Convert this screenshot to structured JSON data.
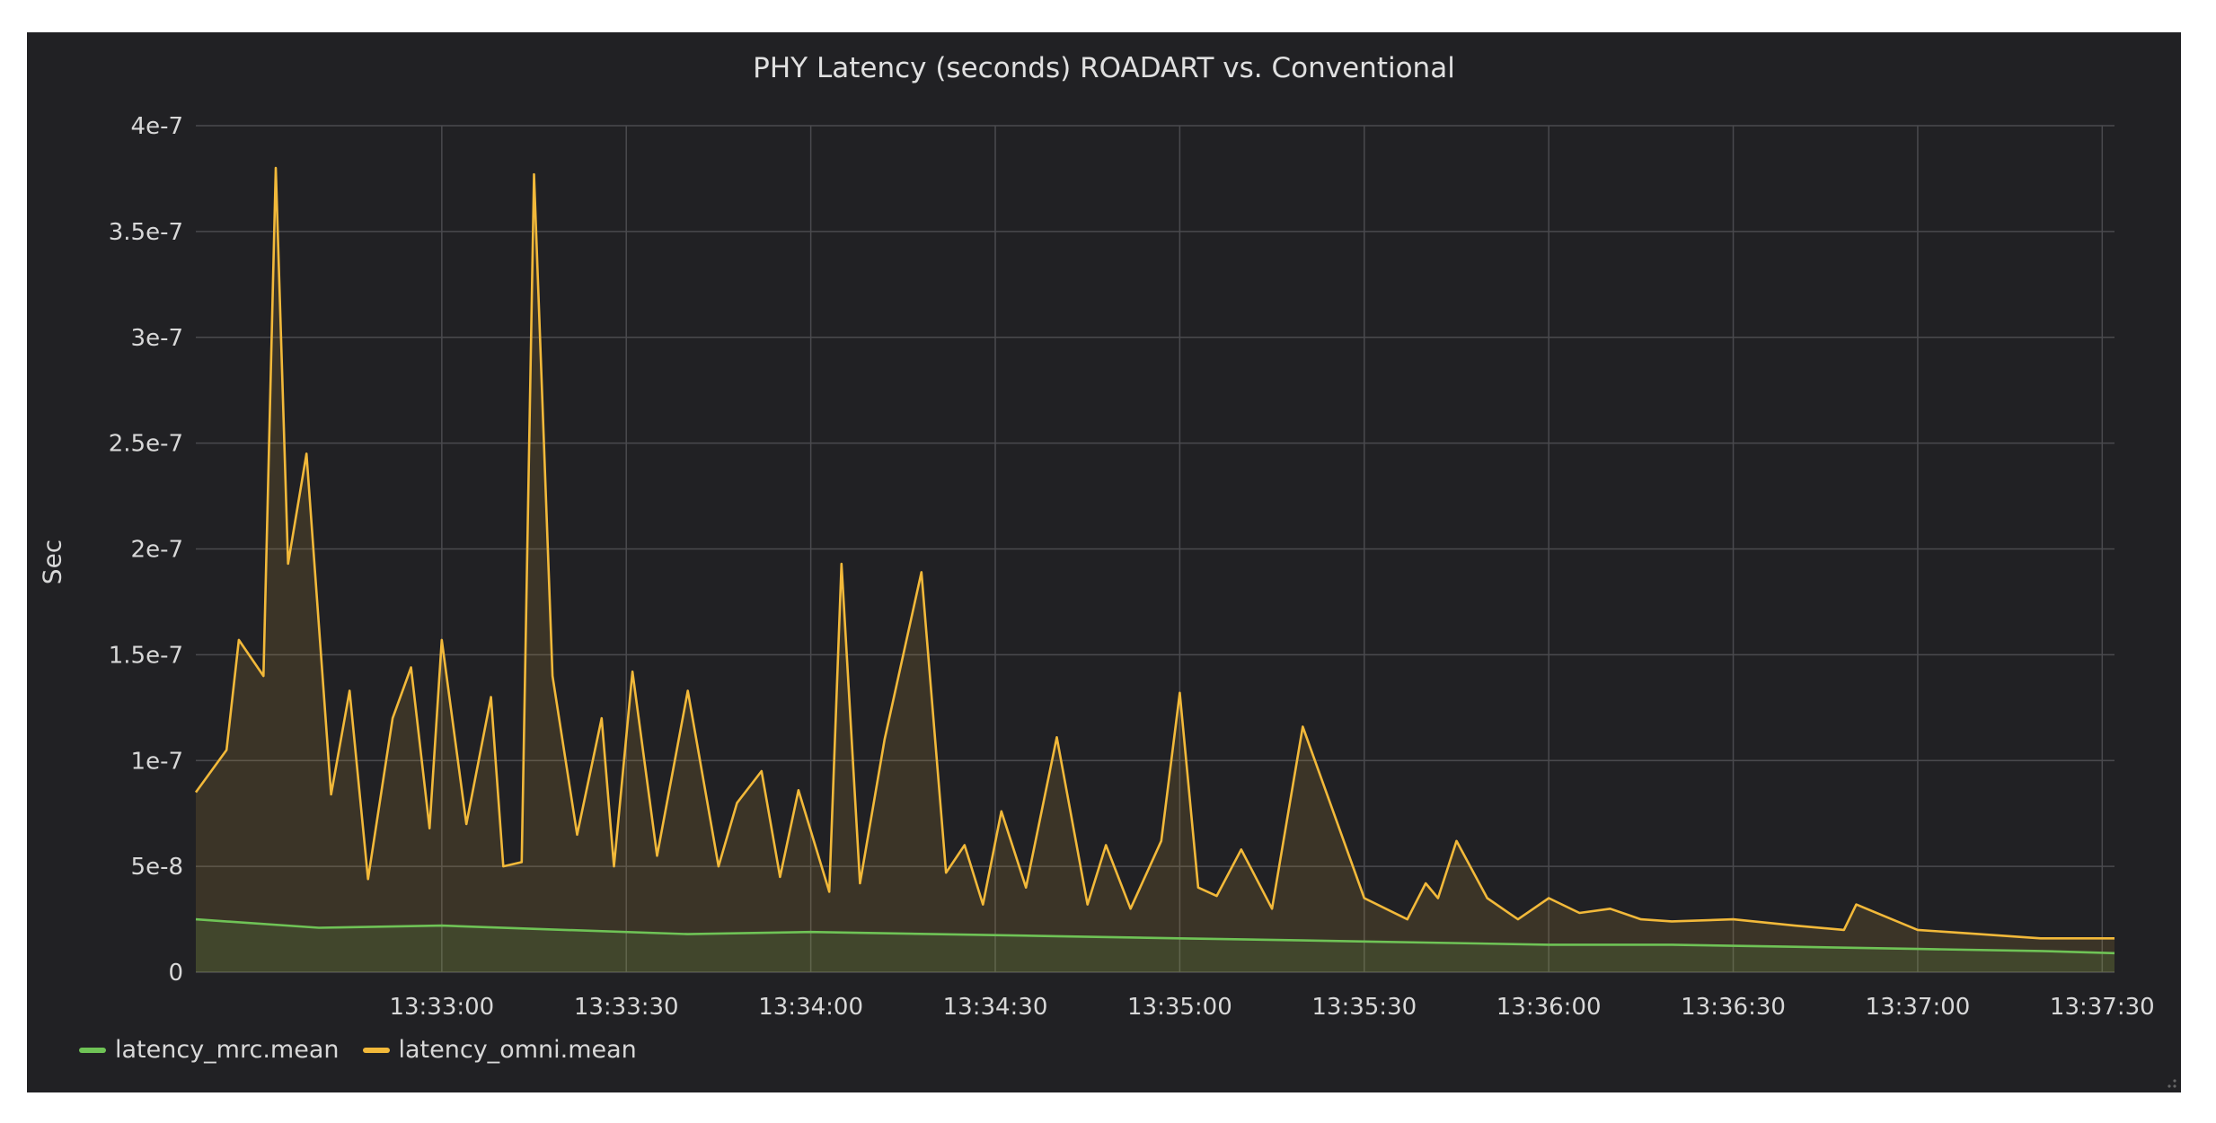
{
  "colors": {
    "panel_bg": "#212124",
    "grid": "#4a4a4e",
    "text": "#d8d8d8",
    "mrc": "#6fc356",
    "omni": "#f2b93a"
  },
  "chart_data": {
    "type": "line",
    "title": "PHY Latency (seconds) ROADART vs. Conventional",
    "ylabel": "Sec",
    "xlabel": "",
    "ylim": [
      0,
      4e-07
    ],
    "y_ticks": [
      0,
      5e-08,
      1e-07,
      1.5e-07,
      2e-07,
      2.5e-07,
      3e-07,
      3.5e-07,
      4e-07
    ],
    "y_tick_labels": [
      "0",
      "5e-8",
      "1e-7",
      "1.5e-7",
      "2e-7",
      "2.5e-7",
      "3e-7",
      "3.5e-7",
      "4e-7"
    ],
    "x_range": [
      "13:32:20",
      "13:37:32"
    ],
    "x_tick_labels": [
      "13:33:00",
      "13:33:30",
      "13:34:00",
      "13:34:30",
      "13:35:00",
      "13:35:30",
      "13:36:00",
      "13:36:30",
      "13:37:00",
      "13:37:30"
    ],
    "grid": true,
    "legend_position": "bottom-left",
    "series": [
      {
        "name": "latency_mrc.mean",
        "color": "#6fc356",
        "fill": true,
        "x": [
          "13:32:20",
          "13:32:40",
          "13:33:00",
          "13:33:20",
          "13:33:40",
          "13:34:00",
          "13:34:20",
          "13:34:40",
          "13:35:00",
          "13:35:20",
          "13:35:40",
          "13:36:00",
          "13:36:20",
          "13:36:40",
          "13:37:00",
          "13:37:20",
          "13:37:32"
        ],
        "y": [
          2.5e-08,
          2.1e-08,
          2.2e-08,
          2e-08,
          1.8e-08,
          1.9e-08,
          1.8e-08,
          1.7e-08,
          1.6e-08,
          1.5e-08,
          1.4e-08,
          1.3e-08,
          1.3e-08,
          1.2e-08,
          1.1e-08,
          1e-08,
          9e-09
        ]
      },
      {
        "name": "latency_omni.mean",
        "color": "#f2b93a",
        "fill": true,
        "x": [
          "13:32:20",
          "13:32:25",
          "13:32:27",
          "13:32:31",
          "13:32:33",
          "13:32:35",
          "13:32:38",
          "13:32:42",
          "13:32:45",
          "13:32:48",
          "13:32:52",
          "13:32:55",
          "13:32:58",
          "13:33:00",
          "13:33:04",
          "13:33:08",
          "13:33:10",
          "13:33:13",
          "13:33:15",
          "13:33:18",
          "13:33:22",
          "13:33:26",
          "13:33:28",
          "13:33:31",
          "13:33:35",
          "13:33:40",
          "13:33:45",
          "13:33:48",
          "13:33:52",
          "13:33:55",
          "13:33:58",
          "13:34:03",
          "13:34:05",
          "13:34:08",
          "13:34:12",
          "13:34:18",
          "13:34:22",
          "13:34:25",
          "13:34:28",
          "13:34:31",
          "13:34:35",
          "13:34:40",
          "13:34:45",
          "13:34:48",
          "13:34:52",
          "13:34:57",
          "13:35:00",
          "13:35:03",
          "13:35:06",
          "13:35:10",
          "13:35:15",
          "13:35:20",
          "13:35:30",
          "13:35:37",
          "13:35:40",
          "13:35:42",
          "13:35:45",
          "13:35:50",
          "13:35:55",
          "13:36:00",
          "13:36:05",
          "13:36:10",
          "13:36:15",
          "13:36:20",
          "13:36:30",
          "13:36:40",
          "13:36:48",
          "13:36:50",
          "13:37:00",
          "13:37:10",
          "13:37:20",
          "13:37:32"
        ],
        "y": [
          8.5e-08,
          1.05e-07,
          1.57e-07,
          1.4e-07,
          3.8e-07,
          1.93e-07,
          2.45e-07,
          8.4e-08,
          1.33e-07,
          4.4e-08,
          1.2e-07,
          1.44e-07,
          6.8e-08,
          1.57e-07,
          7e-08,
          1.3e-07,
          5e-08,
          5.2e-08,
          3.77e-07,
          1.4e-07,
          6.5e-08,
          1.2e-07,
          5e-08,
          1.42e-07,
          5.5e-08,
          1.33e-07,
          5e-08,
          8e-08,
          9.5e-08,
          4.5e-08,
          8.6e-08,
          3.8e-08,
          1.93e-07,
          4.2e-08,
          1.1e-07,
          1.89e-07,
          4.7e-08,
          6e-08,
          3.2e-08,
          7.6e-08,
          4e-08,
          1.11e-07,
          3.2e-08,
          6e-08,
          3e-08,
          6.2e-08,
          1.32e-07,
          4e-08,
          3.6e-08,
          5.8e-08,
          3e-08,
          1.16e-07,
          3.5e-08,
          2.5e-08,
          4.2e-08,
          3.5e-08,
          6.2e-08,
          3.5e-08,
          2.5e-08,
          3.5e-08,
          2.8e-08,
          3e-08,
          2.5e-08,
          2.4e-08,
          2.5e-08,
          2.2e-08,
          2e-08,
          3.2e-08,
          2e-08,
          1.8e-08,
          1.6e-08,
          1.6e-08
        ]
      }
    ]
  }
}
